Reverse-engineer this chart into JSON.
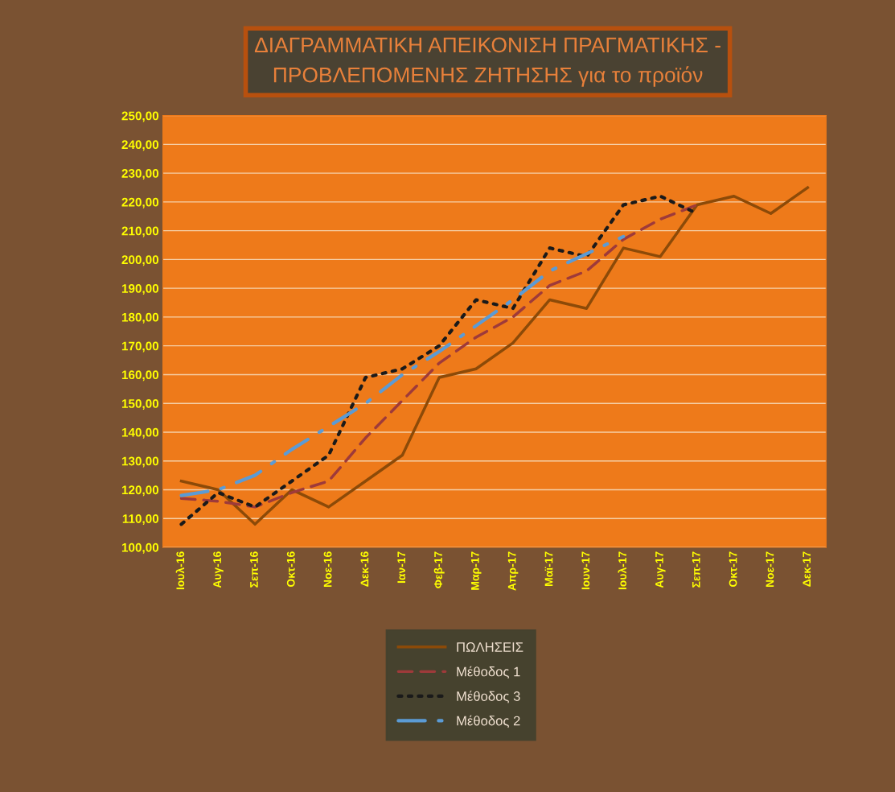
{
  "chart_data": {
    "type": "line",
    "title": "ΔΙΑΓΡΑΜΜΑΤΙΚΗ ΑΠΕΙΚΟΝΙΣΗ ΠΡΑΓΜΑΤΙΚΗΣ -\nΠΡΟΒΛΕΠΟΜΕΝΗΣ ΖΗΤΗΣΗΣ για το προϊόν",
    "categories": [
      "Ιουλ-16",
      "Αυγ-16",
      "Σεπ-16",
      "Οκτ-16",
      "Νοε-16",
      "Δεκ-16",
      "Ιαν-17",
      "Φεβ-17",
      "Μαρ-17",
      "Απρ-17",
      "Μαϊ-17",
      "Ιουν-17",
      "Ιουλ-17",
      "Αυγ-17",
      "Σεπ-17",
      "Οκτ-17",
      "Νοε-17",
      "Δεκ-17"
    ],
    "series": [
      {
        "name": "ΠΩΛΗΣΕΙΣ",
        "color": "#8c4a08",
        "line_style": "solid",
        "values": [
          123,
          120,
          108,
          120,
          114,
          123,
          132,
          159,
          162,
          171,
          186,
          183,
          204,
          201,
          219,
          222,
          216,
          225
        ]
      },
      {
        "name": "Μέθοδος 1",
        "color": "#9e3a3a",
        "line_style": "dashed",
        "values": [
          117,
          116,
          114,
          119,
          123,
          138,
          151,
          164,
          173,
          180,
          191,
          196,
          207,
          214,
          219,
          null,
          null,
          null
        ]
      },
      {
        "name": "Μέθοδος 3",
        "color": "#1a1a1a",
        "line_style": "dotted",
        "values": [
          108,
          119,
          114,
          123,
          132,
          159,
          162,
          170,
          186,
          183,
          204,
          201,
          219,
          222,
          216,
          null,
          null,
          null
        ]
      },
      {
        "name": "Μέθοδος 2",
        "color": "#5b9bd5",
        "line_style": "dashdot",
        "values": [
          118,
          120,
          125,
          134,
          142,
          150,
          160,
          168,
          177,
          186,
          196,
          202,
          208,
          null,
          null,
          null,
          null,
          null
        ]
      }
    ],
    "ylim": [
      100,
      250
    ],
    "yticks": [
      {
        "value": 100,
        "label": "100,00"
      },
      {
        "value": 110,
        "label": "110,00"
      },
      {
        "value": 120,
        "label": "120,00"
      },
      {
        "value": 130,
        "label": "130,00"
      },
      {
        "value": 140,
        "label": "140,00"
      },
      {
        "value": 150,
        "label": "150,00"
      },
      {
        "value": 160,
        "label": "160,00"
      },
      {
        "value": 170,
        "label": "170,00"
      },
      {
        "value": 180,
        "label": "180,00"
      },
      {
        "value": 190,
        "label": "190,00"
      },
      {
        "value": 200,
        "label": "200,00"
      },
      {
        "value": 210,
        "label": "210,00"
      },
      {
        "value": 220,
        "label": "220,00"
      },
      {
        "value": 230,
        "label": "230,00"
      },
      {
        "value": 240,
        "label": "240,00"
      },
      {
        "value": 250,
        "label": "250,00"
      }
    ],
    "grid": "y",
    "legend": "bottom",
    "marker": "none"
  }
}
